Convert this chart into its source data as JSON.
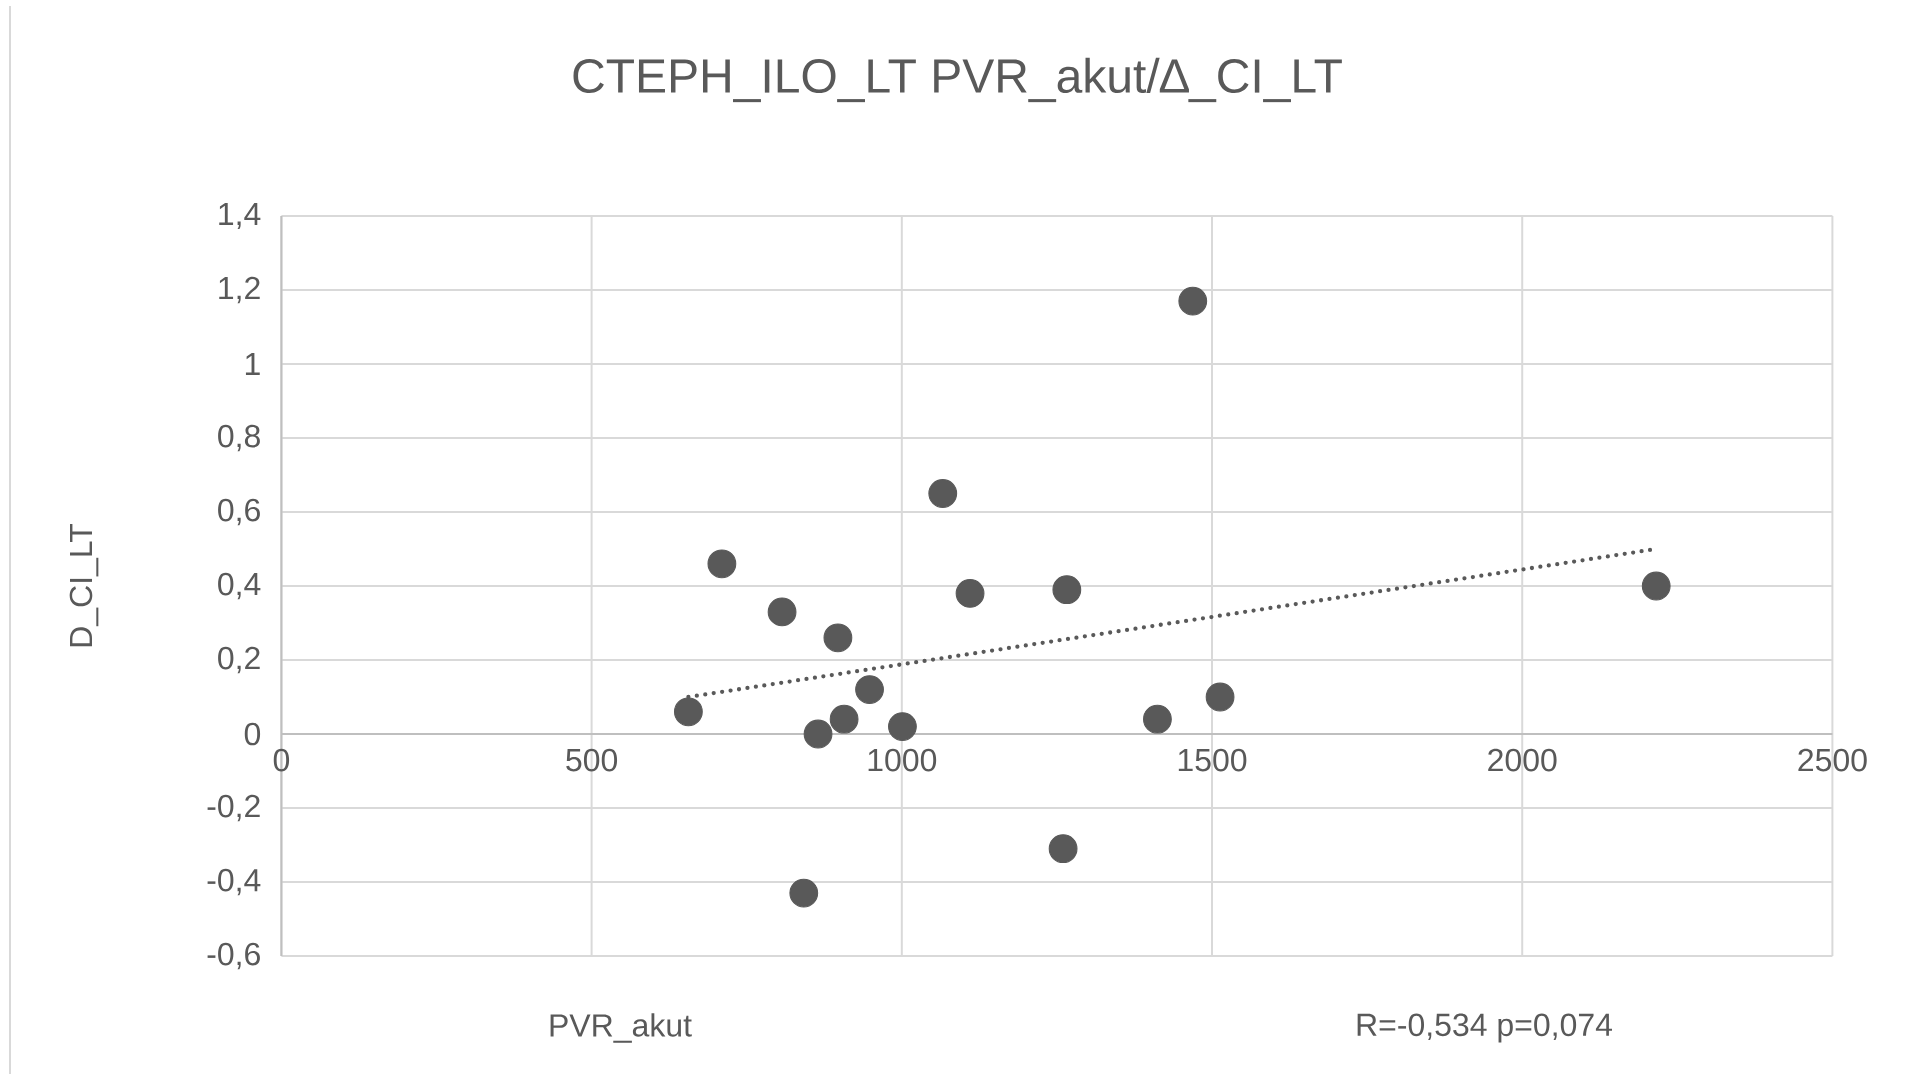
{
  "chart_data": {
    "type": "scatter",
    "title": "CTEPH_ILO_LT PVR_akut/∆_CI_LT",
    "xlabel": "PVR_akut",
    "ylabel": "D_CI_LT",
    "annotations": [
      "R=-0,534 p=0,074"
    ],
    "xlim": [
      0,
      2500
    ],
    "xticks": [
      0,
      500,
      1000,
      1500,
      2000,
      2500
    ],
    "ylim": [
      -0.6,
      1.4
    ],
    "yticks": [
      {
        "value": -0.6,
        "label": "-0,6"
      },
      {
        "value": -0.4,
        "label": "-0,4"
      },
      {
        "value": -0.2,
        "label": "-0,2"
      },
      0,
      {
        "value": 0.2,
        "label": "0,2"
      },
      {
        "value": 0.4,
        "label": "0,4"
      },
      {
        "value": 0.6,
        "label": "0,6"
      },
      {
        "value": 0.8,
        "label": "0,8"
      },
      1,
      {
        "value": 1.2,
        "label": "1,2"
      },
      {
        "value": 1.4,
        "label": "1,4"
      }
    ],
    "grid": true,
    "series": [
      {
        "type": "scatter",
        "color": "#595959",
        "marker": "circle",
        "x": [
          656,
          710,
          807,
          897,
          842,
          865,
          907,
          948,
          1001,
          1066,
          1110,
          1266,
          1260,
          1412,
          1469,
          1513,
          2216
        ],
        "values": [
          0.06,
          0.46,
          0.33,
          0.26,
          -0.43,
          0.0,
          0.04,
          0.12,
          0.02,
          0.65,
          0.38,
          0.39,
          -0.31,
          0.04,
          1.17,
          0.1,
          0.4
        ]
      },
      {
        "type": "line",
        "color": "#595959",
        "marker": "none",
        "line_style": "dotted",
        "x": [
          656,
          2216
        ],
        "values": [
          0.1,
          0.5
        ]
      }
    ]
  }
}
